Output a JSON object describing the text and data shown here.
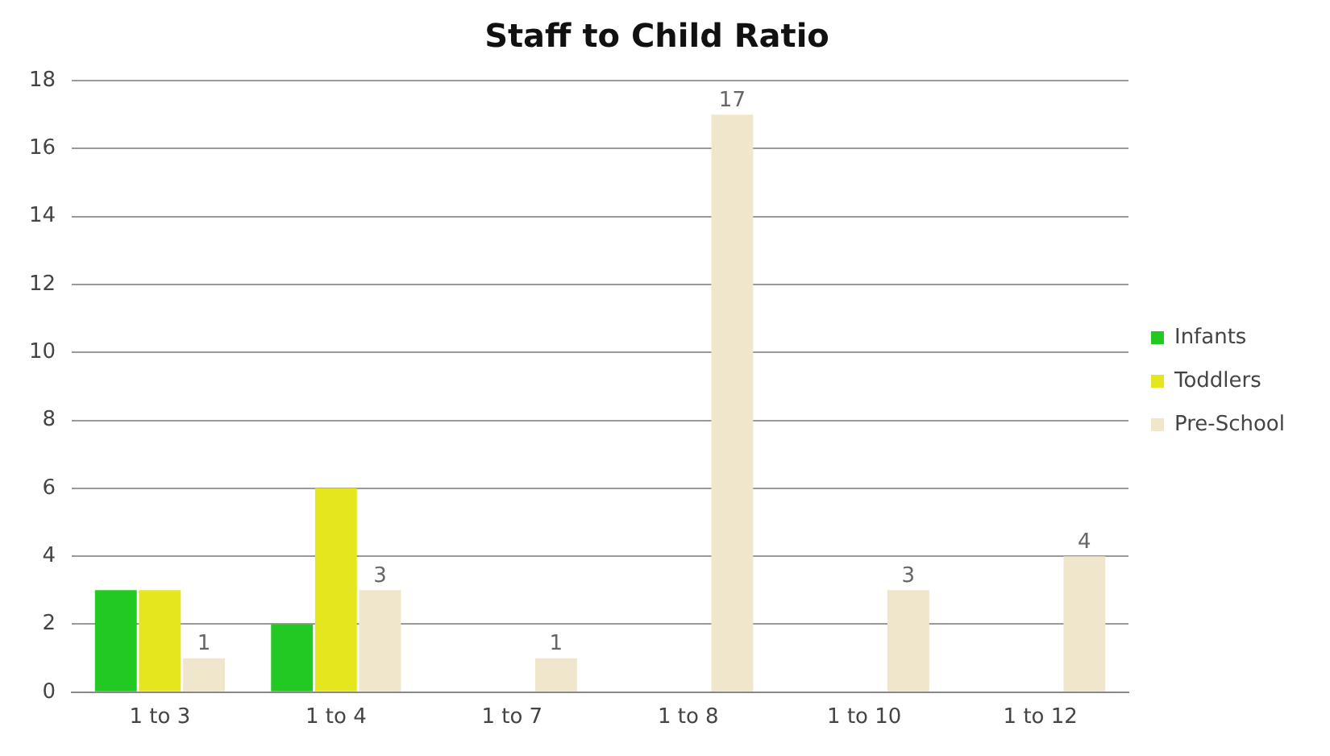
{
  "chart_data": {
    "type": "bar",
    "title": "Staff to Child Ratio",
    "categories": [
      "1 to 3",
      "1 to 4",
      "1 to 7",
      "1 to 8",
      "1 to 10",
      "1 to 12"
    ],
    "series": [
      {
        "name": "Infants",
        "color": "#22c922",
        "values": [
          3,
          2,
          null,
          null,
          null,
          null
        ]
      },
      {
        "name": "Toddlers",
        "color": "#e6e61e",
        "values": [
          3,
          6,
          null,
          null,
          null,
          null
        ]
      },
      {
        "name": "Pre-School",
        "color": "#efe6cb",
        "values": [
          1,
          3,
          1,
          17,
          3,
          4
        ],
        "value_labels": [
          "1",
          "3",
          "1",
          "17",
          "3",
          "4"
        ]
      }
    ],
    "ylim": [
      0,
      18
    ],
    "yticks": [
      0,
      2,
      4,
      6,
      8,
      10,
      12,
      14,
      16,
      18
    ],
    "grid": "y",
    "legend": "right"
  }
}
